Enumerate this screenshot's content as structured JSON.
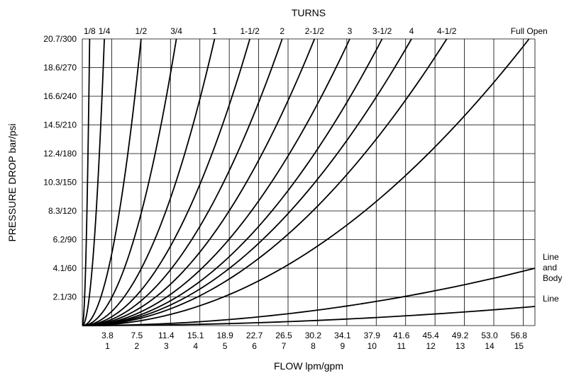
{
  "chart_data": {
    "type": "line",
    "top_title": "TURNS",
    "xlabel": "FLOW lpm/gpm",
    "ylabel": "PRESSURE DROP bar/psi",
    "x_unit_labels": [
      "lpm",
      "gpm"
    ],
    "x_ticks_lpm": [
      "3.8",
      "7.5",
      "11.4",
      "15.1",
      "18.9",
      "22.7",
      "26.5",
      "30.2",
      "34.1",
      "37.9",
      "41.6",
      "45.4",
      "49.2",
      "53.0",
      "56.8"
    ],
    "x_ticks_gpm": [
      "1",
      "2",
      "3",
      "4",
      "5",
      "6",
      "7",
      "8",
      "9",
      "10",
      "11",
      "12",
      "13",
      "14",
      "15"
    ],
    "x_ticks_gpm_values": [
      1,
      2,
      3,
      4,
      5,
      6,
      7,
      8,
      9,
      10,
      11,
      12,
      13,
      14,
      15
    ],
    "y_ticks": [
      "2.1/30",
      "4.1/60",
      "6.2/90",
      "8.3/120",
      "10.3/150",
      "12.4/180",
      "14.5/210",
      "16.6/240",
      "18.6/270",
      "20.7/300"
    ],
    "y_ticks_psi_values": [
      30,
      60,
      90,
      120,
      150,
      180,
      210,
      240,
      270,
      300
    ],
    "xlim": [
      0,
      15.4
    ],
    "ylim": [
      0,
      300
    ],
    "grid": true,
    "series": [
      {
        "name": "1/8",
        "x_at_top": 0.25
      },
      {
        "name": "1/4",
        "x_at_top": 0.75
      },
      {
        "name": "1/2",
        "x_at_top": 2.0
      },
      {
        "name": "3/4",
        "x_at_top": 3.2
      },
      {
        "name": "1",
        "x_at_top": 4.5
      },
      {
        "name": "1-1/2",
        "x_at_top": 5.7
      },
      {
        "name": "2",
        "x_at_top": 6.8
      },
      {
        "name": "2-1/2",
        "x_at_top": 7.9
      },
      {
        "name": "3",
        "x_at_top": 9.1
      },
      {
        "name": "3-1/2",
        "x_at_top": 10.2
      },
      {
        "name": "4",
        "x_at_top": 11.2
      },
      {
        "name": "4-1/2",
        "x_at_top": 12.4
      },
      {
        "name": "Full Open",
        "x_at_top": 15.2
      }
    ],
    "line_curves": [
      {
        "name": "Line and Body",
        "name_lines": [
          "Line",
          "and",
          "Body"
        ],
        "x": [
          0,
          4,
          8,
          12,
          15.4
        ],
        "y": [
          0,
          4,
          17,
          38,
          60
        ]
      },
      {
        "name": "Line",
        "name_lines": [
          "Line"
        ],
        "x": [
          0,
          4,
          8,
          12,
          15.4
        ],
        "y": [
          0,
          1.5,
          6,
          13,
          20
        ]
      }
    ]
  }
}
